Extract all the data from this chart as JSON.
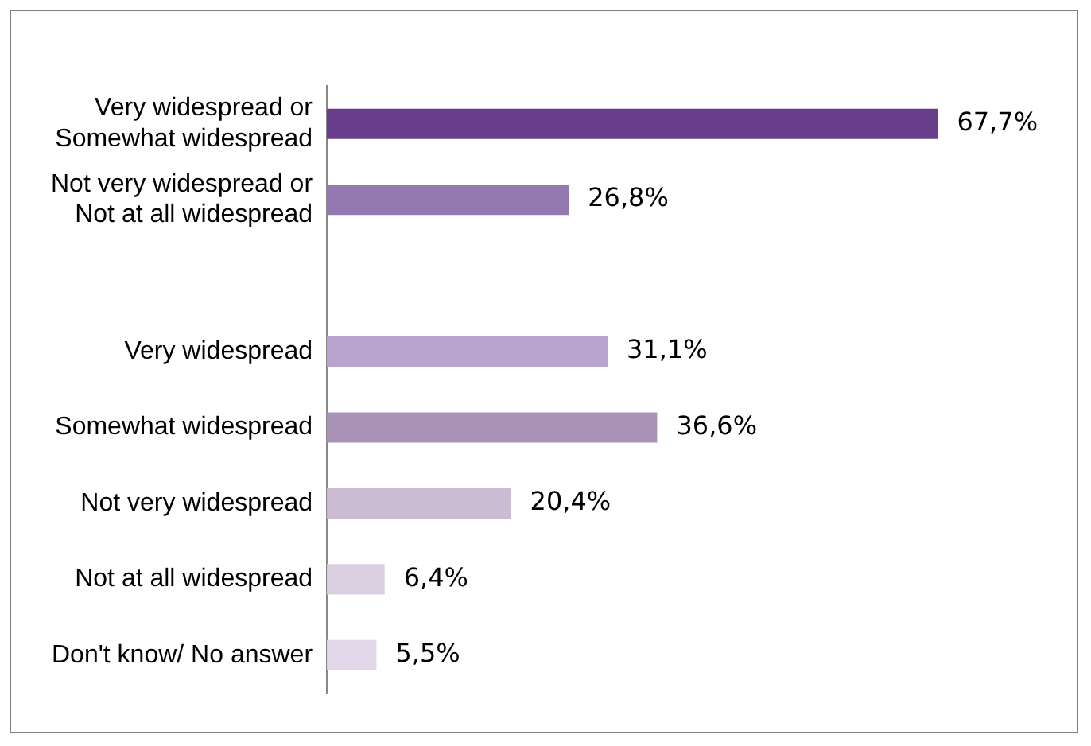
{
  "chart_data": {
    "type": "bar",
    "orientation": "horizontal",
    "categories": [
      "Very widespread or Somewhat widespread",
      "Not very widespread or Not at all widespread",
      null,
      "Very widespread",
      "Somewhat widespread",
      "Not very widespread",
      "Not at all widespread",
      "Don't know/ No answer"
    ],
    "values": [
      67.7,
      26.8,
      null,
      31.1,
      36.6,
      20.4,
      6.4,
      5.5
    ],
    "value_labels": [
      "67,7%",
      "26,8%",
      null,
      "31,1%",
      "36,6%",
      "20,4%",
      "6,4%",
      "5,5%"
    ],
    "colors": [
      "#673d8c",
      "#9478b0",
      "#ffffff",
      "#b8a4cc",
      "#a994b8",
      "#cbbcd4",
      "#d9cfe0",
      "#e0d8e8"
    ],
    "tick_labels": "y",
    "legend": false
  }
}
